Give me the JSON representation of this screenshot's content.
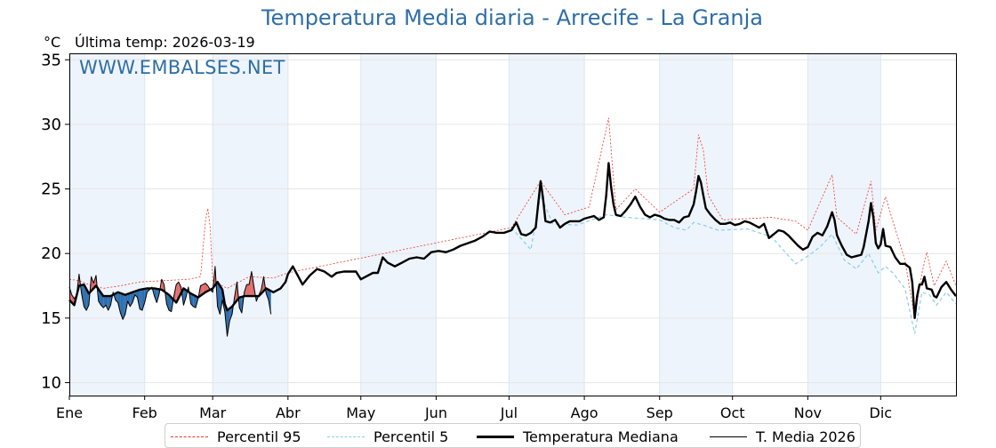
{
  "chart_data": {
    "type": "line",
    "title": "Temperatura Media diaria - Arrecife - La Granja",
    "unit": "°C",
    "subtitle": "Última temp: 2026-03-19",
    "watermark": "WWW.EMBALSES.NET",
    "ylim": [
      9,
      35.5
    ],
    "yticks": [
      10,
      15,
      20,
      25,
      30,
      35
    ],
    "xlim": [
      1,
      366
    ],
    "months": [
      {
        "label": "Ene",
        "day": 1
      },
      {
        "label": "Feb",
        "day": 32
      },
      {
        "label": "Mar",
        "day": 60
      },
      {
        "label": "Abr",
        "day": 91
      },
      {
        "label": "May",
        "day": 121
      },
      {
        "label": "Jun",
        "day": 152
      },
      {
        "label": "Jul",
        "day": 182
      },
      {
        "label": "Ago",
        "day": 213
      },
      {
        "label": "Sep",
        "day": 244
      },
      {
        "label": "Oct",
        "day": 274
      },
      {
        "label": "Nov",
        "day": 305
      },
      {
        "label": "Dic",
        "day": 335
      }
    ],
    "shaded_months": [
      [
        "Ene",
        1,
        32
      ],
      [
        "Mar",
        60,
        91
      ],
      [
        "May",
        121,
        152
      ],
      [
        "Jul",
        182,
        213
      ],
      [
        "Sep",
        244,
        274
      ],
      [
        "Nov",
        305,
        335
      ]
    ],
    "legend_placement": "bottom",
    "grid": true,
    "colors": {
      "p95": "#e8382f",
      "p5": "#87ceeb",
      "median": "#000000",
      "current": "#000000",
      "above": "#e06c6c",
      "below": "#2f6fae",
      "shade": "#eef4fb",
      "title": "#2e6ea6"
    },
    "legend": [
      "Percentil 95",
      "Percentil 5",
      "Temperatura Mediana",
      "T. Media 2026"
    ],
    "median_anchor_points": [
      [
        1,
        16.4
      ],
      [
        3,
        16.0
      ],
      [
        5,
        17.5
      ],
      [
        7,
        17.6
      ],
      [
        9,
        16.9
      ],
      [
        12,
        17.5
      ],
      [
        15,
        16.7
      ],
      [
        18,
        16.7
      ],
      [
        21,
        17.0
      ],
      [
        24,
        16.8
      ],
      [
        27,
        17.0
      ],
      [
        30,
        17.2
      ],
      [
        33,
        17.3
      ],
      [
        36,
        17.3
      ],
      [
        39,
        17.2
      ],
      [
        42,
        16.8
      ],
      [
        45,
        16.2
      ],
      [
        48,
        17.3
      ],
      [
        51,
        16.9
      ],
      [
        54,
        16.6
      ],
      [
        57,
        17.0
      ],
      [
        60,
        17.3
      ],
      [
        62,
        17.8
      ],
      [
        64,
        17.2
      ],
      [
        65,
        16.1
      ],
      [
        66,
        15.6
      ],
      [
        68,
        15.9
      ],
      [
        71,
        16.6
      ],
      [
        73,
        16.7
      ],
      [
        76,
        16.7
      ],
      [
        79,
        16.7
      ],
      [
        82,
        17.3
      ],
      [
        85,
        17.0
      ],
      [
        88,
        17.3
      ],
      [
        90,
        17.8
      ],
      [
        91,
        18.4
      ],
      [
        93,
        19.0
      ],
      [
        95,
        18.3
      ],
      [
        97,
        17.6
      ],
      [
        100,
        18.3
      ],
      [
        103,
        18.8
      ],
      [
        106,
        18.6
      ],
      [
        109,
        18.2
      ],
      [
        111,
        18.5
      ],
      [
        114,
        18.6
      ],
      [
        117,
        18.6
      ],
      [
        119,
        18.6
      ],
      [
        121,
        18.0
      ],
      [
        123,
        18.2
      ],
      [
        126,
        18.5
      ],
      [
        128,
        18.5
      ],
      [
        130,
        19.7
      ],
      [
        132,
        19.3
      ],
      [
        135,
        19.0
      ],
      [
        138,
        19.3
      ],
      [
        141,
        19.6
      ],
      [
        144,
        19.7
      ],
      [
        147,
        19.6
      ],
      [
        150,
        20.1
      ],
      [
        153,
        20.2
      ],
      [
        156,
        20.1
      ],
      [
        159,
        20.3
      ],
      [
        162,
        20.6
      ],
      [
        165,
        20.8
      ],
      [
        168,
        21.0
      ],
      [
        171,
        21.3
      ],
      [
        174,
        21.7
      ],
      [
        177,
        21.6
      ],
      [
        180,
        21.6
      ],
      [
        183,
        21.8
      ],
      [
        185,
        22.4
      ],
      [
        187,
        21.5
      ],
      [
        189,
        21.4
      ],
      [
        191,
        21.6
      ],
      [
        193,
        22.0
      ],
      [
        195,
        25.6
      ],
      [
        196,
        24.3
      ],
      [
        197,
        22.5
      ],
      [
        199,
        22.4
      ],
      [
        201,
        22.6
      ],
      [
        203,
        22.0
      ],
      [
        205,
        22.3
      ],
      [
        207,
        22.5
      ],
      [
        209,
        22.5
      ],
      [
        211,
        22.5
      ],
      [
        213,
        22.7
      ],
      [
        215,
        22.8
      ],
      [
        217,
        22.9
      ],
      [
        219,
        22.6
      ],
      [
        221,
        22.8
      ],
      [
        222,
        24.5
      ],
      [
        223,
        27.0
      ],
      [
        224,
        25.2
      ],
      [
        225,
        23.8
      ],
      [
        226,
        23.0
      ],
      [
        228,
        22.9
      ],
      [
        230,
        23.3
      ],
      [
        232,
        23.8
      ],
      [
        234,
        24.4
      ],
      [
        236,
        23.6
      ],
      [
        238,
        23.0
      ],
      [
        240,
        22.8
      ],
      [
        242,
        23.0
      ],
      [
        244,
        22.9
      ],
      [
        246,
        22.7
      ],
      [
        248,
        22.6
      ],
      [
        250,
        22.6
      ],
      [
        252,
        22.4
      ],
      [
        254,
        22.8
      ],
      [
        256,
        22.9
      ],
      [
        258,
        23.8
      ],
      [
        259,
        24.8
      ],
      [
        260,
        26.0
      ],
      [
        261,
        25.5
      ],
      [
        262,
        24.5
      ],
      [
        263,
        23.5
      ],
      [
        265,
        23.0
      ],
      [
        267,
        22.6
      ],
      [
        269,
        22.3
      ],
      [
        271,
        22.3
      ],
      [
        273,
        22.4
      ],
      [
        275,
        22.2
      ],
      [
        277,
        22.3
      ],
      [
        279,
        22.5
      ],
      [
        281,
        22.4
      ],
      [
        283,
        22.2
      ],
      [
        285,
        22.0
      ],
      [
        287,
        22.3
      ],
      [
        289,
        21.2
      ],
      [
        291,
        21.5
      ],
      [
        293,
        21.8
      ],
      [
        295,
        21.7
      ],
      [
        297,
        21.4
      ],
      [
        299,
        21.0
      ],
      [
        301,
        20.6
      ],
      [
        303,
        20.3
      ],
      [
        305,
        20.5
      ],
      [
        307,
        21.3
      ],
      [
        309,
        21.6
      ],
      [
        311,
        21.4
      ],
      [
        313,
        22.1
      ],
      [
        315,
        23.2
      ],
      [
        316,
        22.6
      ],
      [
        317,
        21.4
      ],
      [
        319,
        20.6
      ],
      [
        321,
        19.9
      ],
      [
        323,
        19.7
      ],
      [
        325,
        19.8
      ],
      [
        327,
        19.9
      ],
      [
        328,
        20.5
      ],
      [
        330,
        22.5
      ],
      [
        331,
        23.9
      ],
      [
        332,
        22.8
      ],
      [
        333,
        20.8
      ],
      [
        334,
        20.4
      ],
      [
        335,
        20.7
      ],
      [
        336,
        21.9
      ],
      [
        337,
        20.6
      ],
      [
        339,
        20.5
      ],
      [
        341,
        19.7
      ],
      [
        343,
        19.2
      ],
      [
        345,
        19.2
      ],
      [
        347,
        18.9
      ],
      [
        348,
        17.8
      ],
      [
        349,
        15.0
      ],
      [
        350,
        16.7
      ],
      [
        351,
        17.6
      ],
      [
        352,
        17.6
      ],
      [
        353,
        18.2
      ],
      [
        354,
        17.3
      ],
      [
        356,
        17.2
      ],
      [
        357,
        16.7
      ],
      [
        358,
        16.6
      ],
      [
        360,
        17.4
      ],
      [
        362,
        17.8
      ],
      [
        364,
        17.2
      ],
      [
        366,
        16.7
      ]
    ],
    "p95_anchor_points": [
      [
        1,
        18.0
      ],
      [
        5,
        17.9
      ],
      [
        9,
        17.6
      ],
      [
        15,
        17.3
      ],
      [
        22,
        17.5
      ],
      [
        30,
        17.8
      ],
      [
        40,
        17.9
      ],
      [
        50,
        18.0
      ],
      [
        55,
        18.2
      ],
      [
        57,
        22.5
      ],
      [
        58,
        23.5
      ],
      [
        59,
        22.0
      ],
      [
        60,
        17.9
      ],
      [
        66,
        17.3
      ],
      [
        75,
        18.2
      ],
      [
        85,
        18.1
      ],
      [
        91,
        18.5
      ],
      [
        183,
        22.0
      ],
      [
        195,
        25.6
      ],
      [
        205,
        23.0
      ],
      [
        215,
        23.6
      ],
      [
        223,
        30.5
      ],
      [
        226,
        23.4
      ],
      [
        234,
        25.0
      ],
      [
        244,
        23.2
      ],
      [
        258,
        25.0
      ],
      [
        260,
        29.2
      ],
      [
        262,
        28.0
      ],
      [
        264,
        24.5
      ],
      [
        270,
        22.6
      ],
      [
        280,
        22.7
      ],
      [
        290,
        22.8
      ],
      [
        300,
        22.5
      ],
      [
        305,
        21.8
      ],
      [
        315,
        26.1
      ],
      [
        317,
        22.8
      ],
      [
        325,
        21.5
      ],
      [
        331,
        25.6
      ],
      [
        333,
        21.8
      ],
      [
        337,
        24.4
      ],
      [
        340,
        22.5
      ],
      [
        345,
        19.5
      ],
      [
        349,
        15.0
      ],
      [
        352,
        18.5
      ],
      [
        354,
        20.1
      ],
      [
        357,
        17.5
      ],
      [
        362,
        19.4
      ],
      [
        366,
        17.5
      ]
    ],
    "p5_anchor_points": [
      [
        183,
        22.0
      ],
      [
        191,
        20.3
      ],
      [
        195,
        24.5
      ],
      [
        200,
        22.3
      ],
      [
        210,
        22.2
      ],
      [
        222,
        23.0
      ],
      [
        230,
        22.8
      ],
      [
        244,
        22.6
      ],
      [
        250,
        22.0
      ],
      [
        255,
        21.8
      ],
      [
        258,
        22.4
      ],
      [
        262,
        22.2
      ],
      [
        268,
        21.8
      ],
      [
        280,
        21.9
      ],
      [
        290,
        21.3
      ],
      [
        300,
        19.2
      ],
      [
        305,
        19.8
      ],
      [
        310,
        20.5
      ],
      [
        315,
        21.5
      ],
      [
        320,
        19.5
      ],
      [
        325,
        18.8
      ],
      [
        330,
        20.0
      ],
      [
        334,
        18.5
      ],
      [
        337,
        19.0
      ],
      [
        340,
        18.5
      ],
      [
        345,
        17.3
      ],
      [
        349,
        13.8
      ],
      [
        352,
        17.0
      ],
      [
        355,
        16.8
      ],
      [
        358,
        16.0
      ],
      [
        362,
        17.0
      ],
      [
        366,
        16.1
      ]
    ],
    "current_year_anchor_points": [
      [
        1,
        17.4
      ],
      [
        2,
        16.8
      ],
      [
        3,
        16.5
      ],
      [
        4,
        16.8
      ],
      [
        5,
        18.4
      ],
      [
        6,
        16.9
      ],
      [
        7,
        15.9
      ],
      [
        8,
        15.6
      ],
      [
        9,
        16.0
      ],
      [
        10,
        18.2
      ],
      [
        11,
        17.7
      ],
      [
        12,
        18.3
      ],
      [
        13,
        16.3
      ],
      [
        14,
        16.0
      ],
      [
        15,
        15.8
      ],
      [
        16,
        16.0
      ],
      [
        17,
        15.6
      ],
      [
        18,
        16.0
      ],
      [
        19,
        17.0
      ],
      [
        20,
        16.4
      ],
      [
        21,
        16.2
      ],
      [
        22,
        15.4
      ],
      [
        23,
        14.9
      ],
      [
        24,
        15.3
      ],
      [
        25,
        16.3
      ],
      [
        26,
        15.9
      ],
      [
        27,
        16.2
      ],
      [
        28,
        16.8
      ],
      [
        29,
        16.6
      ],
      [
        30,
        15.7
      ],
      [
        31,
        15.6
      ],
      [
        32,
        16.2
      ],
      [
        33,
        17.0
      ],
      [
        34,
        17.2
      ],
      [
        35,
        17.4
      ],
      [
        36,
        16.7
      ],
      [
        37,
        16.2
      ],
      [
        38,
        16.9
      ],
      [
        39,
        18.0
      ],
      [
        40,
        17.6
      ],
      [
        41,
        16.1
      ],
      [
        42,
        15.6
      ],
      [
        43,
        15.5
      ],
      [
        44,
        16.7
      ],
      [
        45,
        17.6
      ],
      [
        46,
        17.8
      ],
      [
        47,
        17.4
      ],
      [
        48,
        16.0
      ],
      [
        49,
        16.6
      ],
      [
        50,
        17.4
      ],
      [
        51,
        16.1
      ],
      [
        52,
        15.9
      ],
      [
        53,
        15.8
      ],
      [
        54,
        16.5
      ],
      [
        55,
        17.5
      ],
      [
        56,
        17.6
      ],
      [
        57,
        17.7
      ],
      [
        58,
        17.5
      ],
      [
        59,
        17.2
      ],
      [
        60,
        17.0
      ],
      [
        61,
        19.0
      ],
      [
        62,
        15.9
      ],
      [
        63,
        15.3
      ],
      [
        64,
        16.4
      ],
      [
        65,
        15.5
      ],
      [
        66,
        13.6
      ],
      [
        67,
        14.8
      ],
      [
        68,
        15.3
      ],
      [
        69,
        16.6
      ],
      [
        70,
        17.8
      ],
      [
        71,
        15.8
      ],
      [
        72,
        15.4
      ],
      [
        73,
        17.0
      ],
      [
        74,
        17.6
      ],
      [
        75,
        17.6
      ],
      [
        76,
        18.6
      ],
      [
        77,
        17.4
      ],
      [
        78,
        16.3
      ],
      [
        79,
        16.8
      ],
      [
        80,
        17.2
      ],
      [
        81,
        18.2
      ],
      [
        82,
        16.9
      ],
      [
        83,
        16.4
      ],
      [
        84,
        15.3
      ]
    ]
  }
}
